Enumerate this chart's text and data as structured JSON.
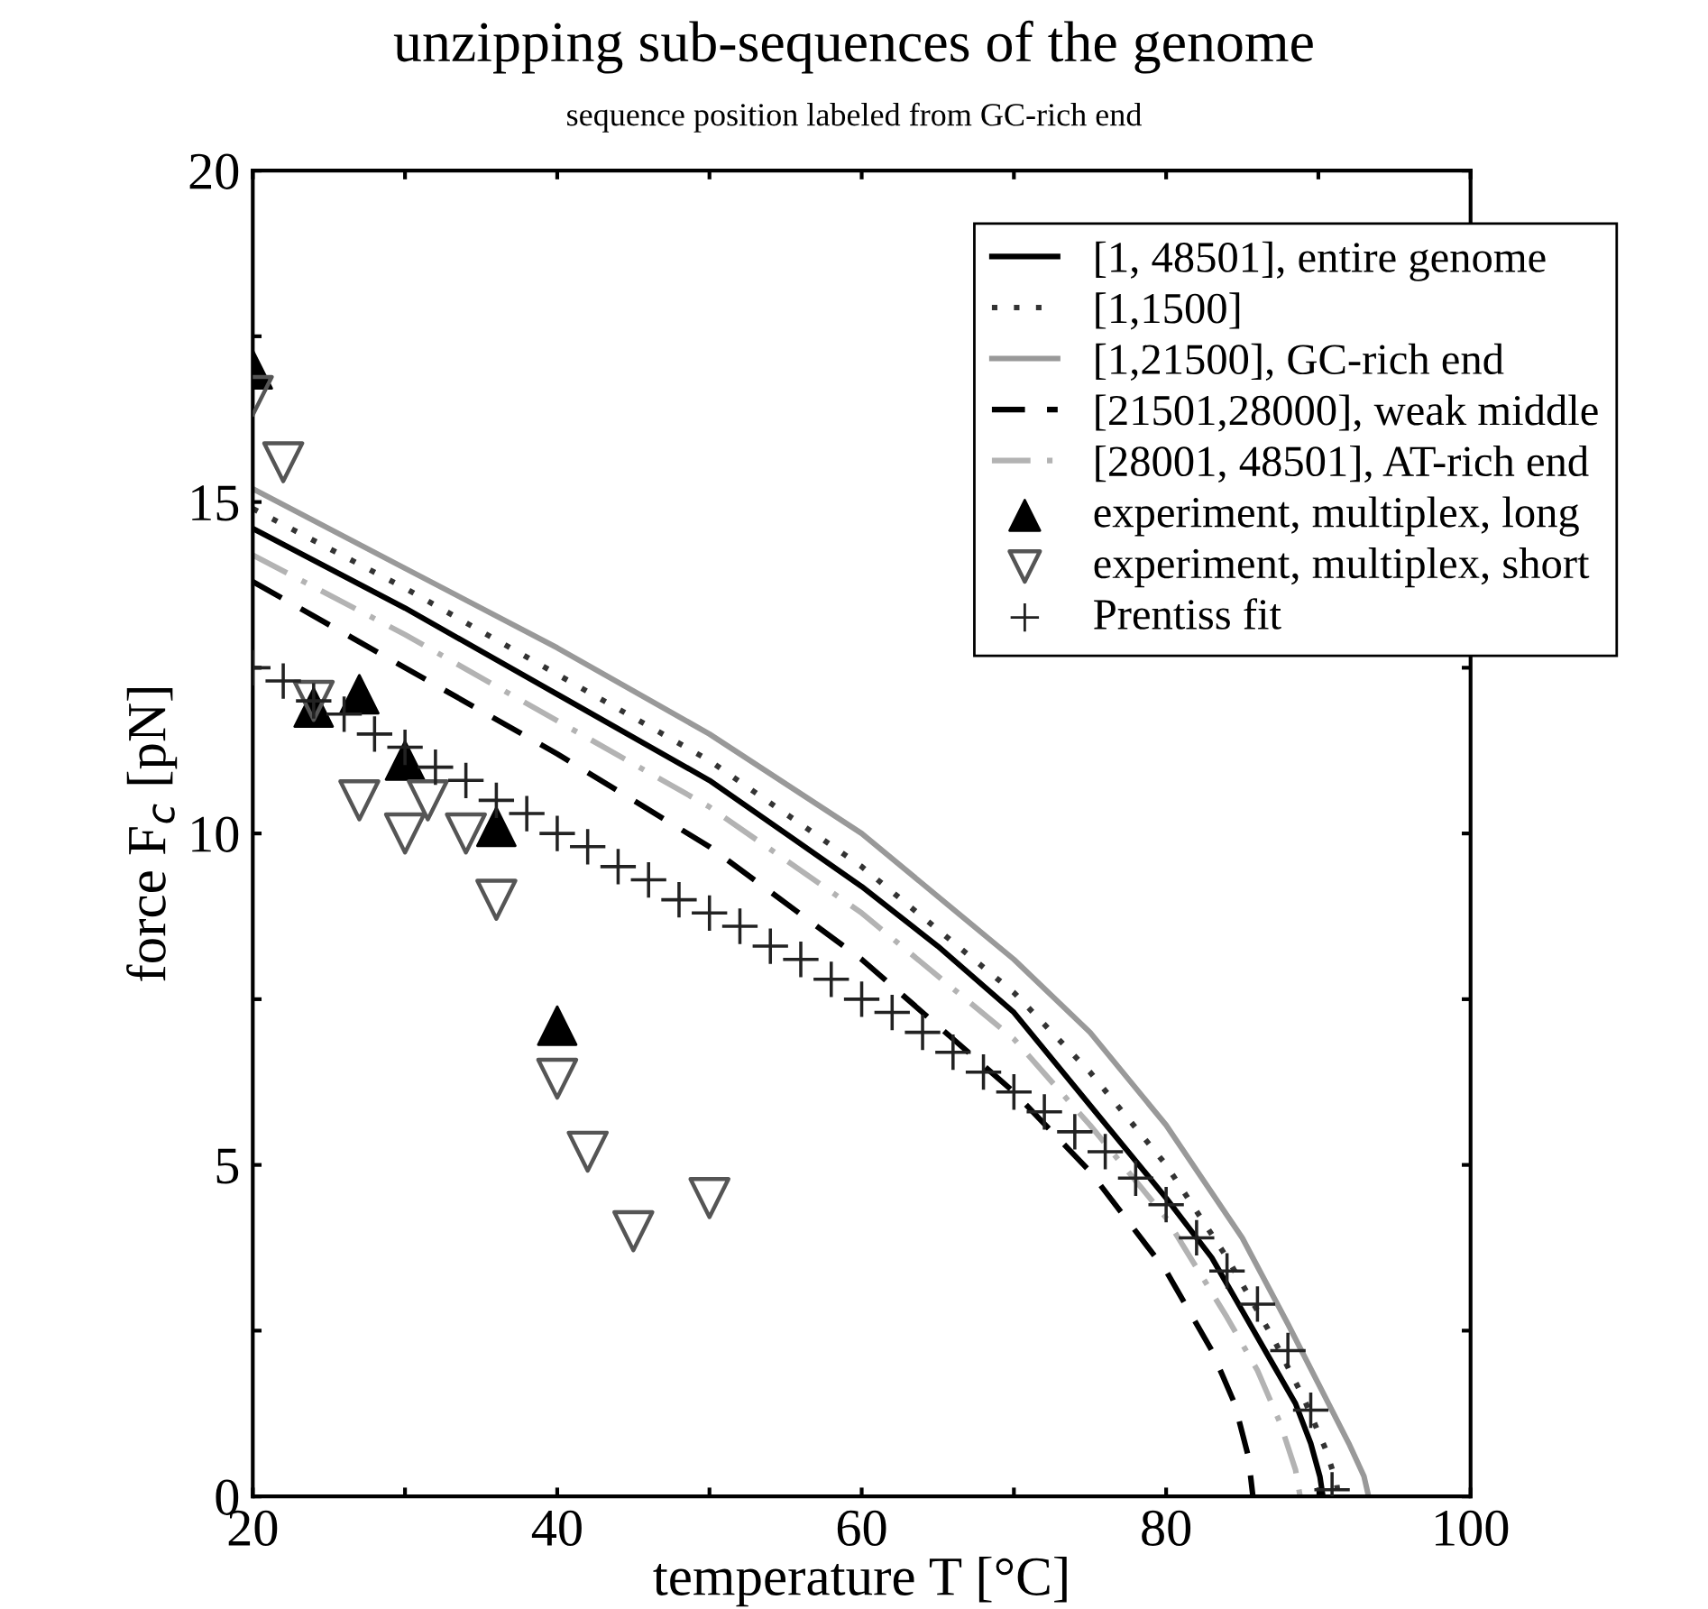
{
  "chart_data": {
    "type": "line",
    "title": "unzipping sub-sequences of the genome",
    "subtitle": "sequence position labeled from GC-rich end",
    "xlabel": "temperature T [°C]",
    "ylabel": "force F$_{c}$ [pN]",
    "xlim": [
      20,
      100
    ],
    "ylim": [
      0,
      20
    ],
    "xticks": [
      20,
      {
        "value": 30,
        "label": null
      },
      40,
      {
        "value": 50,
        "label": null
      },
      60,
      {
        "value": 70,
        "label": null
      },
      80,
      {
        "value": 90,
        "label": null
      },
      100
    ],
    "yticks": [
      0,
      {
        "value": 2.5,
        "label": null
      },
      5,
      {
        "value": 7.5,
        "label": null
      },
      10,
      {
        "value": 12.5,
        "label": null
      },
      15,
      {
        "value": 17.5,
        "label": null
      },
      20
    ],
    "grid": false,
    "legend": "top right",
    "series": [
      {
        "name": "[1, 48501], entire genome",
        "color": "#000000",
        "line_style": "solid",
        "x": [
          20,
          30,
          40,
          50,
          55,
          60,
          65,
          70,
          75,
          80,
          83,
          85,
          87,
          88.5,
          89.5,
          90.1,
          90.3
        ],
        "values": [
          14.6,
          13.4,
          12.1,
          10.8,
          10.0,
          9.2,
          8.3,
          7.3,
          5.9,
          4.5,
          3.6,
          2.8,
          2.0,
          1.4,
          0.8,
          0.3,
          0
        ]
      },
      {
        "name": "[1,1500]",
        "color": "#333333",
        "line_style": "dotted",
        "x": [
          20,
          30,
          40,
          50,
          60,
          70,
          75,
          80,
          84,
          87,
          89,
          90.5,
          91.2,
          91.3
        ],
        "values": [
          14.9,
          13.7,
          12.4,
          11.1,
          9.5,
          7.6,
          6.4,
          5.0,
          3.6,
          2.4,
          1.5,
          0.7,
          0.2,
          0
        ]
      },
      {
        "name": "[1,21500], GC-rich end",
        "color": "#999999",
        "line_style": "solid",
        "x": [
          20,
          30,
          40,
          50,
          60,
          70,
          75,
          80,
          85,
          88,
          90,
          92,
          93,
          93.3
        ],
        "values": [
          15.2,
          14.0,
          12.8,
          11.5,
          10.0,
          8.1,
          7.0,
          5.6,
          3.9,
          2.6,
          1.7,
          0.8,
          0.3,
          0
        ]
      },
      {
        "name": "[21501,28000], weak middle",
        "color": "#000000",
        "line_style": "dashed",
        "x": [
          20,
          30,
          40,
          50,
          60,
          70,
          75,
          80,
          83,
          84.5,
          85.4,
          85.7
        ],
        "values": [
          13.8,
          12.5,
          11.2,
          9.8,
          8.1,
          6.1,
          4.9,
          3.4,
          2.2,
          1.4,
          0.6,
          0
        ]
      },
      {
        "name": "[28001, 48501], AT-rich end",
        "color": "#b3b3b3",
        "line_style": "dashdot",
        "x": [
          20,
          30,
          40,
          50,
          60,
          70,
          75,
          80,
          84,
          86,
          87.5,
          88.5,
          88.8
        ],
        "values": [
          14.2,
          13.0,
          11.7,
          10.4,
          8.8,
          6.9,
          5.6,
          4.2,
          2.7,
          1.9,
          1.1,
          0.4,
          0
        ]
      },
      {
        "name": "experiment, multiplex, long",
        "type": "scatter",
        "marker": "triangle",
        "color": "#000000",
        "x": [
          20,
          24,
          27,
          30,
          36,
          40
        ],
        "values": [
          17.0,
          11.9,
          12.1,
          11.1,
          10.1,
          7.1
        ]
      },
      {
        "name": "experiment, multiplex, short",
        "type": "scatter",
        "marker": "triangle_down",
        "color": "#555555",
        "x": [
          20,
          22,
          24,
          27,
          30,
          31.5,
          34,
          36,
          40,
          42,
          45,
          50
        ],
        "values": [
          16.6,
          15.6,
          12.0,
          10.5,
          10.0,
          10.5,
          10.0,
          9.0,
          6.3,
          5.2,
          4.0,
          4.5
        ]
      },
      {
        "name": "Prentiss fit",
        "type": "scatter",
        "marker": "cross",
        "color": "#222222",
        "x": [
          20,
          22,
          24,
          26,
          28,
          30,
          32,
          34,
          36,
          38,
          40,
          42,
          44,
          46,
          48,
          50,
          52,
          54,
          56,
          58,
          60,
          62,
          64,
          66,
          68,
          70,
          72,
          74,
          76,
          78,
          80,
          82,
          84,
          86,
          88,
          89.5,
          90.9
        ],
        "values": [
          12.5,
          12.3,
          12.0,
          11.8,
          11.5,
          11.3,
          11.0,
          10.8,
          10.5,
          10.3,
          10.0,
          9.8,
          9.5,
          9.3,
          9.0,
          8.8,
          8.6,
          8.3,
          8.1,
          7.8,
          7.5,
          7.3,
          7.0,
          6.7,
          6.4,
          6.1,
          5.8,
          5.5,
          5.2,
          4.8,
          4.4,
          3.9,
          3.4,
          2.9,
          2.2,
          1.3,
          0.1
        ]
      }
    ]
  }
}
